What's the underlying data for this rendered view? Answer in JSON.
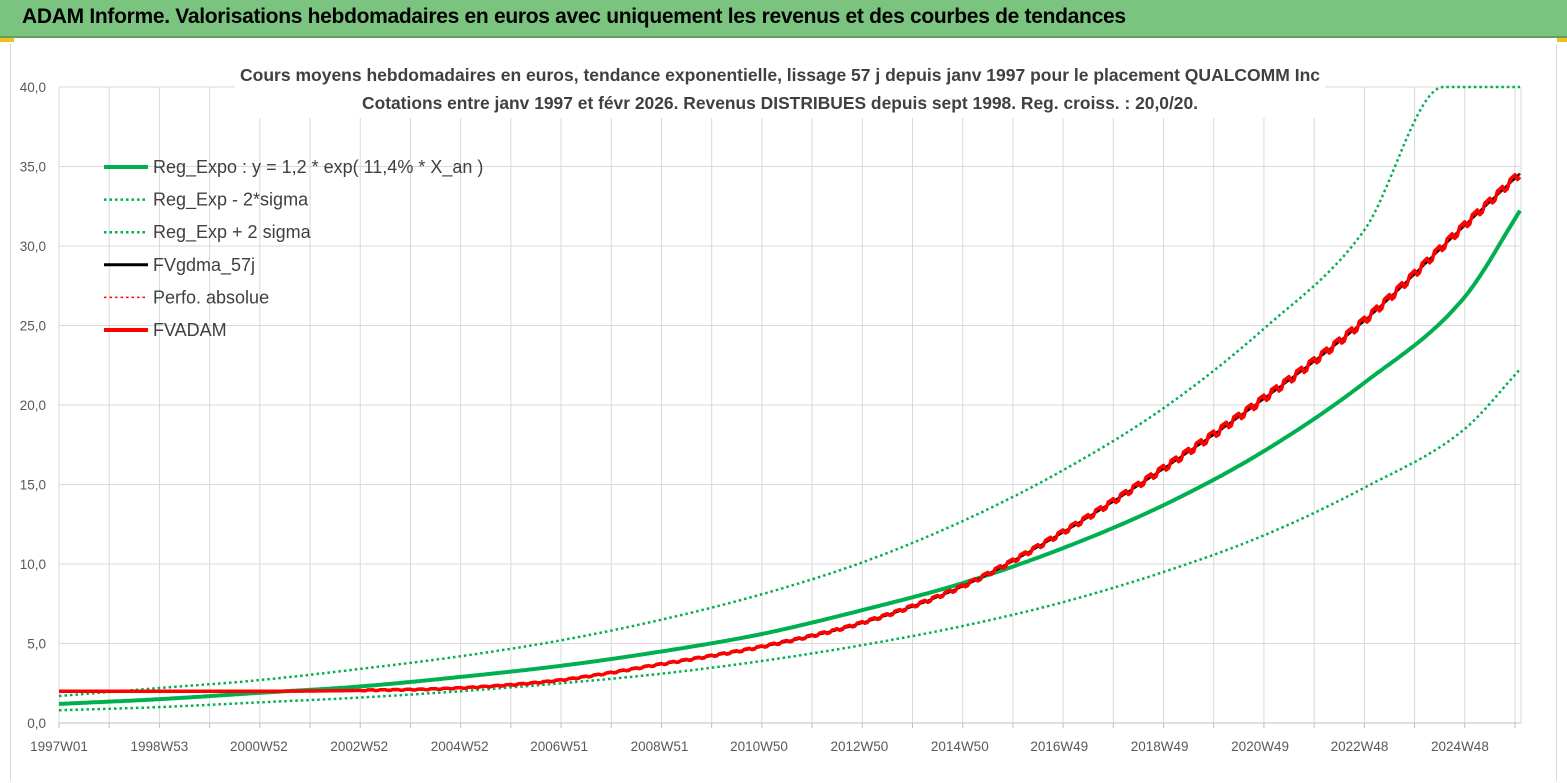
{
  "header": {
    "title": "ADAM Informe. Valorisations hebdomadaires en euros avec uniquement les revenus et des courbes de tendances"
  },
  "colors": {
    "header_bg": "#7bc47f",
    "green": "#00b050",
    "red": "#ff0000",
    "black": "#000000",
    "grid": "#d9d9d9",
    "axis_text": "#595959",
    "title_text": "#404040"
  },
  "chart_data": {
    "type": "line",
    "title": "Cours moyens hebdomadaires en euros, tendance exponentielle, lissage 57 j depuis janv 1997 pour le placement QUALCOMM Inc",
    "subtitle": "Cotations entre janv 1997 et févr 2026. Revenus DISTRIBUES depuis sept 1998. Reg. croiss. : 20,0/20.",
    "xlabel": "",
    "ylabel": "",
    "ylim": [
      0,
      40
    ],
    "y_ticks": [
      "0,0",
      "5,0",
      "10,0",
      "15,0",
      "20,0",
      "25,0",
      "30,0",
      "35,0",
      "40,0"
    ],
    "x_ticks": [
      "1997W01",
      "1998W53",
      "2000W52",
      "2002W52",
      "2004W52",
      "2006W51",
      "2008W51",
      "2010W50",
      "2012W50",
      "2014W50",
      "2016W49",
      "2018W49",
      "2020W49",
      "2022W48",
      "2024W48"
    ],
    "x_range": [
      "1997W01",
      "2026W07"
    ],
    "grid": true,
    "legend_position": "top-left",
    "series": [
      {
        "name": "Reg_Expo : y = 1,2 * exp( 11,4% *  X_an )",
        "style": "solid-thick",
        "color": "#00b050",
        "x": [
          "1997W01",
          "1999",
          "2001",
          "2003",
          "2005",
          "2007",
          "2009",
          "2011",
          "2013",
          "2015",
          "2017",
          "2019",
          "2021",
          "2023",
          "2025",
          "2026W07"
        ],
        "values": [
          1.2,
          1.5,
          1.9,
          2.3,
          2.9,
          3.6,
          4.5,
          5.6,
          7.1,
          8.8,
          11.0,
          13.7,
          17.1,
          21.4,
          26.8,
          32.3
        ]
      },
      {
        "name": "Reg_Exp - 2*sigma",
        "style": "dotted",
        "color": "#00b050",
        "x": [
          "1997W01",
          "1999",
          "2001",
          "2003",
          "2005",
          "2007",
          "2009",
          "2011",
          "2013",
          "2015",
          "2017",
          "2019",
          "2021",
          "2023",
          "2025",
          "2026W07"
        ],
        "values": [
          0.8,
          1.0,
          1.3,
          1.6,
          2.0,
          2.5,
          3.1,
          3.9,
          4.9,
          6.1,
          7.6,
          9.5,
          11.8,
          14.8,
          18.5,
          22.3
        ]
      },
      {
        "name": "Reg_Exp + 2 sigma",
        "style": "dotted",
        "color": "#00b050",
        "x": [
          "1997W01",
          "1999",
          "2001",
          "2003",
          "2005",
          "2007",
          "2009",
          "2011",
          "2013",
          "2015",
          "2017",
          "2019",
          "2021",
          "2023",
          "2024W31",
          "2026W07"
        ],
        "values": [
          1.7,
          2.2,
          2.7,
          3.4,
          4.2,
          5.2,
          6.5,
          8.1,
          10.1,
          12.7,
          15.9,
          19.8,
          24.8,
          31.0,
          40.0,
          40.0
        ]
      },
      {
        "name": "FVgdma_57j",
        "style": "solid",
        "color": "#000000",
        "x": [
          "1997W01",
          "1999",
          "2001",
          "2003",
          "2005",
          "2007",
          "2009",
          "2011",
          "2013",
          "2015",
          "2017",
          "2019",
          "2021",
          "2023",
          "2025",
          "2026W07"
        ],
        "values": [
          2.0,
          2.0,
          2.0,
          2.05,
          2.2,
          2.7,
          3.7,
          4.8,
          6.3,
          8.6,
          12.0,
          16.0,
          20.4,
          25.3,
          31.3,
          34.6
        ]
      },
      {
        "name": "Perfo. absolue",
        "style": "dotted",
        "color": "#ff0000",
        "x": [
          "1997W01",
          "1999",
          "2001",
          "2003",
          "2005",
          "2007",
          "2009",
          "2011",
          "2013",
          "2015",
          "2017",
          "2019",
          "2021",
          "2023",
          "2025",
          "2026W07"
        ],
        "values": [
          2.0,
          2.0,
          2.0,
          2.05,
          2.2,
          2.7,
          3.7,
          4.8,
          6.3,
          8.6,
          12.0,
          16.0,
          20.4,
          25.3,
          31.3,
          34.6
        ]
      },
      {
        "name": "FVADAM",
        "style": "solid-thick-stepped",
        "color": "#ff0000",
        "x": [
          "1997W01",
          "1999",
          "2001",
          "2003",
          "2005",
          "2007",
          "2009",
          "2011",
          "2013",
          "2015",
          "2017",
          "2019",
          "2021",
          "2023",
          "2025",
          "2026W07"
        ],
        "values": [
          2.0,
          2.0,
          2.0,
          2.05,
          2.2,
          2.7,
          3.7,
          4.8,
          6.3,
          8.6,
          12.0,
          16.0,
          20.4,
          25.3,
          31.3,
          34.6
        ]
      }
    ]
  }
}
